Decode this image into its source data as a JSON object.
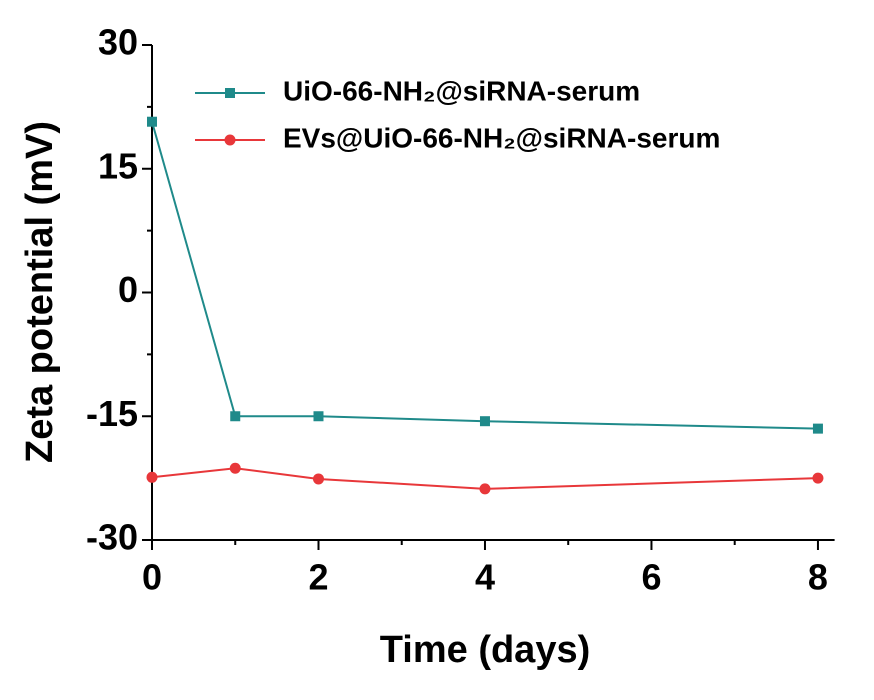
{
  "chart_data": {
    "type": "line",
    "x_label": "Time (days)",
    "y_label": "Zeta potential (mV)",
    "x": [
      0,
      1,
      2,
      4,
      8
    ],
    "series": [
      {
        "name": "UiO-66-NH₂@siRNA-serum",
        "color": "#1f8a8a",
        "marker": "square",
        "values": [
          20.7,
          -15.0,
          -15.0,
          -15.6,
          -16.5
        ]
      },
      {
        "name": "EVs@UiO-66-NH₂@siRNA-serum",
        "color": "#e8373a",
        "marker": "circle",
        "values": [
          -22.4,
          -21.3,
          -22.6,
          -23.8,
          -22.5
        ]
      }
    ],
    "xlim": [
      0,
      8.2
    ],
    "xticks": [
      0,
      2,
      4,
      6,
      8
    ],
    "ylim": [
      -30,
      30
    ],
    "yticks": [
      -30,
      -15,
      0,
      15,
      30
    ],
    "legend": "upper right"
  }
}
